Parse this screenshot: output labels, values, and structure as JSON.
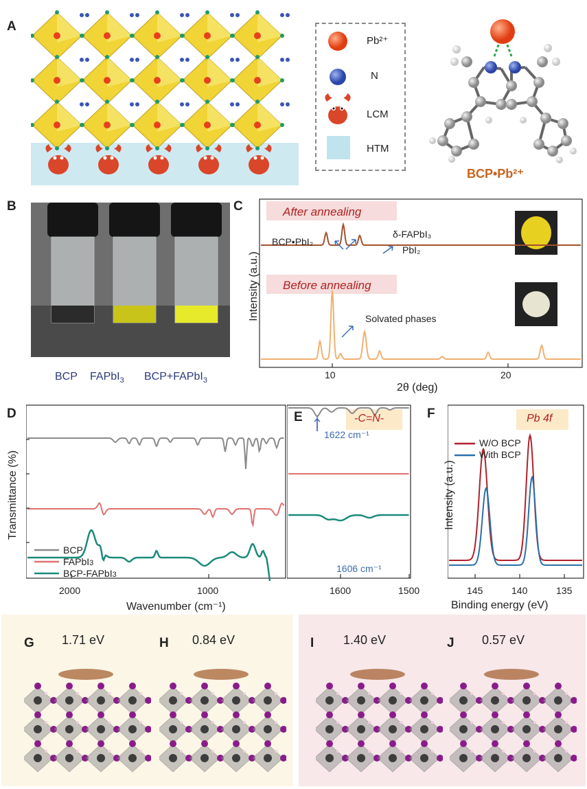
{
  "panels": {
    "A": {
      "label": "A",
      "legend": [
        {
          "key": "pb",
          "text": "Pb²⁺",
          "color": "#e8401c"
        },
        {
          "key": "n",
          "text": "N",
          "color": "#3b55b5"
        },
        {
          "key": "lcm",
          "text": "LCM",
          "color": "#d9462a"
        },
        {
          "key": "htm",
          "text": "HTM",
          "color": "#bfe4ee"
        }
      ],
      "molecule_caption": "BCP•Pb²⁺"
    },
    "B": {
      "label": "B",
      "vials": [
        "BCP",
        "FAPbI3",
        "BCP+FAPbI3"
      ],
      "vial_colors": [
        "#2b2b2b",
        "#c8c41a",
        "#e6ea2a"
      ]
    },
    "C": {
      "label": "C",
      "boxes": [
        "After annealing",
        "Before annealing"
      ],
      "annotations": [
        "BCP•PbI₂",
        "δ-FAPbI₃",
        "PbI₂",
        "Solvated phases"
      ],
      "ylabel": "Intensity (a.u.)",
      "xlabel": "2θ (deg)",
      "xticks": [
        "10",
        "20"
      ]
    },
    "D": {
      "label": "D",
      "ylabel": "Transmittance (%)",
      "xlabel": "Wavenumber (cm⁻¹)",
      "xticks": [
        "2000",
        "1000"
      ],
      "legend": [
        "BCP",
        "FAPbI3",
        "BCP-FAPbI3"
      ]
    },
    "E": {
      "label": "E",
      "box": "-C=N-",
      "annotations": [
        "1622 cm⁻¹",
        "1606 cm⁻¹"
      ],
      "xticks": [
        "1600",
        "1500"
      ]
    },
    "F": {
      "label": "F",
      "box": "Pb 4f",
      "legend": [
        "W/O BCP",
        "With BCP"
      ],
      "ylabel": "Intensity (a.u.)",
      "xlabel": "Binding energy (eV)",
      "xticks": [
        "145",
        "140",
        "135"
      ]
    },
    "G": {
      "label": "G",
      "energy": "1.71 eV"
    },
    "H": {
      "label": "H",
      "energy": "0.84 eV"
    },
    "I": {
      "label": "I",
      "energy": "1.40 eV"
    },
    "J": {
      "label": "J",
      "energy": "0.57 eV"
    }
  },
  "colors": {
    "bcp_line": "#8a8a8a",
    "fapbi3_line": "#e07070",
    "bcp_fapbi3_line": "#1b8a7a",
    "after_line": "#a0522d",
    "before_line": "#f0b070",
    "wo_bcp": "#b0202a",
    "with_bcp": "#2a6fa8",
    "annot_blue": "#3a6ab0",
    "box_bg": "#f6dcdc",
    "box_text": "#b02020"
  }
}
